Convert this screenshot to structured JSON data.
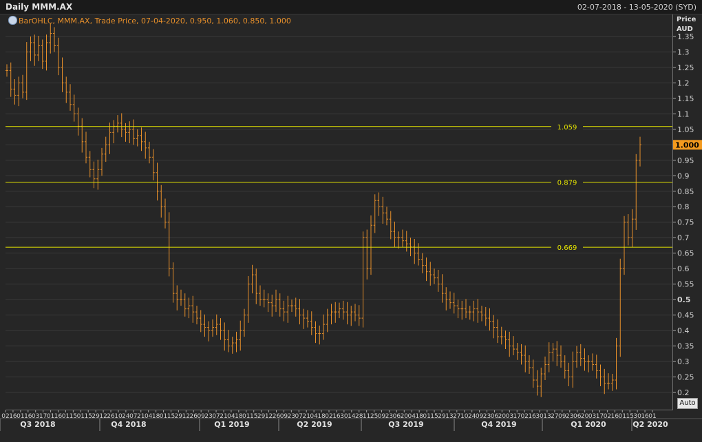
{
  "header": {
    "title": "Daily MMM.AX",
    "date_range": "02-07-2018 - 13-05-2020 (SYD)"
  },
  "legend": {
    "text": "BarOHLC, MMM.AX, Trade Price, 07-04-2020, 0.950, 1.060, 0.850, 1.000",
    "icon": "globe-icon"
  },
  "axis": {
    "price_label": "Price",
    "currency_label": "AUD",
    "auto_label": "Auto"
  },
  "colors": {
    "bar": "#e8902a",
    "hline": "#e6e600",
    "last_badge": "#f39a1e",
    "background": "#262626",
    "grid": "#3a3a3a"
  },
  "chart_data": {
    "type": "ohlc-bar",
    "title": "Daily MMM.AX",
    "series_name": "MMM.AX",
    "ylabel": "Price AUD",
    "ylim": [
      0.18,
      1.39
    ],
    "yticks": [
      "1.35",
      "1.3",
      "1.25",
      "1.2",
      "1.15",
      "1.1",
      "1.05",
      "1",
      "0.95",
      "0.9",
      "0.85",
      "0.8",
      "0.75",
      "0.7",
      "0.65",
      "0.6",
      "0.55",
      "0.5",
      "0.45",
      "0.4",
      "0.35",
      "0.3",
      "0.25",
      "0.2"
    ],
    "last_value_label": "1.000",
    "grid": true,
    "horizontal_lines": [
      {
        "value": 1.059,
        "label": "1.059"
      },
      {
        "value": 0.879,
        "label": "0.879"
      },
      {
        "value": 0.669,
        "label": "0.669"
      }
    ],
    "x_tick_labels": [
      "02",
      "16",
      "01",
      "16",
      "03",
      "17",
      "01",
      "16",
      "01",
      "15",
      "01",
      "15",
      "29",
      "12",
      "26",
      "10",
      "24",
      "07",
      "21",
      "04",
      "18",
      "01",
      "15",
      "29",
      "12",
      "26",
      "09",
      "23",
      "07",
      "21",
      "04",
      "18",
      "01",
      "15",
      "29",
      "12",
      "26",
      "09",
      "23",
      "07",
      "21",
      "04",
      "18",
      "02",
      "16",
      "30",
      "14",
      "28",
      "11",
      "25",
      "09",
      "23",
      "06",
      "20",
      "04",
      "18",
      "01",
      "15",
      "29",
      "13",
      "27",
      "10",
      "24",
      "09",
      "23",
      "06",
      "20",
      "03",
      "17",
      "02",
      "16",
      "30",
      "13",
      "27",
      "09",
      "23",
      "06",
      "20",
      "03",
      "17",
      "02",
      "16",
      "01",
      "15",
      "30",
      "16",
      "01"
    ],
    "period_labels": [
      "Q3 2018",
      "Q4 2018",
      "Q1 2019",
      "Q2 2019",
      "Q3 2019",
      "Q4 2019",
      "Q1 2020",
      "Q2 2020"
    ],
    "closes": [
      1.24,
      1.18,
      1.16,
      1.2,
      1.17,
      1.3,
      1.33,
      1.29,
      1.32,
      1.27,
      1.33,
      1.36,
      1.32,
      1.25,
      1.2,
      1.17,
      1.13,
      1.1,
      1.06,
      1.01,
      0.96,
      0.92,
      0.89,
      0.92,
      0.97,
      1.0,
      1.04,
      1.06,
      1.07,
      1.05,
      1.04,
      1.05,
      1.02,
      1.03,
      1.01,
      0.99,
      0.96,
      0.91,
      0.85,
      0.8,
      0.75,
      0.6,
      0.52,
      0.5,
      0.5,
      0.47,
      0.48,
      0.46,
      0.44,
      0.42,
      0.41,
      0.4,
      0.41,
      0.42,
      0.4,
      0.37,
      0.35,
      0.36,
      0.37,
      0.4,
      0.45,
      0.55,
      0.58,
      0.52,
      0.5,
      0.5,
      0.49,
      0.48,
      0.5,
      0.47,
      0.46,
      0.48,
      0.48,
      0.47,
      0.45,
      0.44,
      0.43,
      0.41,
      0.39,
      0.39,
      0.42,
      0.45,
      0.46,
      0.46,
      0.47,
      0.46,
      0.45,
      0.46,
      0.45,
      0.44,
      0.7,
      0.6,
      0.74,
      0.82,
      0.8,
      0.78,
      0.76,
      0.72,
      0.7,
      0.7,
      0.69,
      0.68,
      0.67,
      0.65,
      0.63,
      0.61,
      0.59,
      0.58,
      0.57,
      0.55,
      0.52,
      0.5,
      0.49,
      0.48,
      0.47,
      0.47,
      0.46,
      0.46,
      0.47,
      0.46,
      0.45,
      0.44,
      0.43,
      0.41,
      0.38,
      0.38,
      0.37,
      0.35,
      0.34,
      0.33,
      0.32,
      0.3,
      0.28,
      0.24,
      0.22,
      0.26,
      0.29,
      0.33,
      0.34,
      0.32,
      0.3,
      0.27,
      0.25,
      0.3,
      0.33,
      0.31,
      0.3,
      0.3,
      0.29,
      0.27,
      0.25,
      0.23,
      0.23,
      0.24,
      0.35,
      0.6,
      0.75,
      0.7,
      0.76,
      0.95,
      1.0
    ]
  }
}
